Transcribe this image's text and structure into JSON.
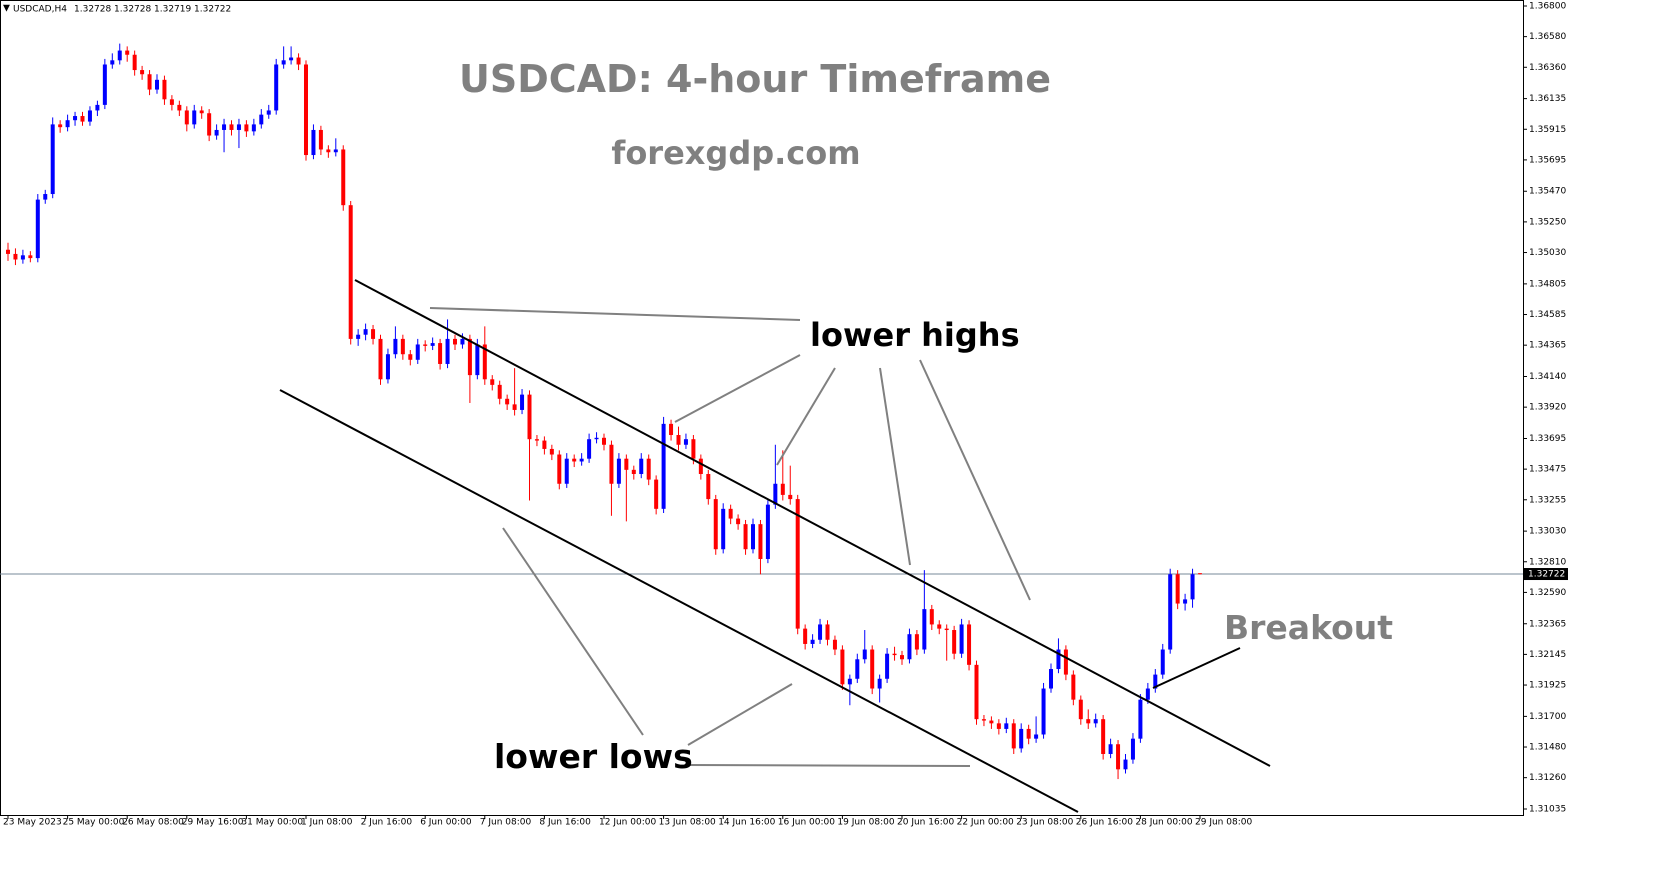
{
  "chart_data": {
    "type": "candlestick",
    "symbol": "USDCAD,H4",
    "title": "USDCAD: 4-hour Timeframe",
    "subtitle": "forexgdp.com",
    "annotations": [
      "lower highs",
      "lower lows",
      "Breakout"
    ],
    "up_color": "#0000ff",
    "down_color": "#ff0000",
    "price_line_color": "#778899",
    "ylim": [
      1.30992,
      1.36843
    ],
    "yticks": [
      {
        "value": 1.368,
        "label": "1.36800"
      },
      {
        "value": 1.3658,
        "label": "1.36580"
      },
      {
        "value": 1.3636,
        "label": "1.36360"
      },
      1.36135,
      1.35915,
      1.35695,
      {
        "value": 1.3547,
        "label": "1.35470"
      },
      {
        "value": 1.3525,
        "label": "1.35250"
      },
      {
        "value": 1.3503,
        "label": "1.35030"
      },
      1.34805,
      1.34585,
      1.34365,
      {
        "value": 1.3414,
        "label": "1.34140"
      },
      {
        "value": 1.3392,
        "label": "1.33920"
      },
      1.33695,
      1.33475,
      1.33255,
      {
        "value": 1.3303,
        "label": "1.33030"
      },
      {
        "value": 1.3281,
        "label": "1.32810"
      },
      {
        "value": 1.3259,
        "label": "1.32590"
      },
      1.32365,
      1.32145,
      1.31925,
      {
        "value": 1.317,
        "label": "1.31700"
      },
      {
        "value": 1.3148,
        "label": "1.31480"
      },
      {
        "value": 1.3126,
        "label": "1.31260"
      },
      1.31035
    ],
    "x": [
      "23 May 2023",
      null,
      null,
      null,
      null,
      null,
      null,
      null,
      "25 May 00:00",
      null,
      null,
      null,
      null,
      null,
      null,
      null,
      "26 May 08:00",
      null,
      null,
      null,
      null,
      null,
      null,
      null,
      "29 May 16:00",
      null,
      null,
      null,
      null,
      null,
      null,
      null,
      "31 May 00:00",
      null,
      null,
      null,
      null,
      null,
      null,
      null,
      "1 Jun 08:00",
      null,
      null,
      null,
      null,
      null,
      null,
      null,
      "2 Jun 16:00",
      null,
      null,
      null,
      null,
      null,
      null,
      null,
      "6 Jun 00:00",
      null,
      null,
      null,
      null,
      null,
      null,
      null,
      "7 Jun 08:00",
      null,
      null,
      null,
      null,
      null,
      null,
      null,
      "8 Jun 16:00",
      null,
      null,
      null,
      null,
      null,
      null,
      null,
      "12 Jun 00:00",
      null,
      null,
      null,
      null,
      null,
      null,
      null,
      "13 Jun 08:00",
      null,
      null,
      null,
      null,
      null,
      null,
      null,
      "14 Jun 16:00",
      null,
      null,
      null,
      null,
      null,
      null,
      null,
      "16 Jun 00:00",
      null,
      null,
      null,
      null,
      null,
      null,
      null,
      "19 Jun 08:00",
      null,
      null,
      null,
      null,
      null,
      null,
      null,
      "20 Jun 16:00",
      null,
      null,
      null,
      null,
      null,
      null,
      null,
      "22 Jun 00:00",
      null,
      null,
      null,
      null,
      null,
      null,
      null,
      "23 Jun 08:00",
      null,
      null,
      null,
      null,
      null,
      null,
      null,
      "26 Jun 16:00",
      null,
      null,
      null,
      null,
      null,
      null,
      null,
      "28 Jun 00:00",
      null,
      null,
      null,
      null,
      null,
      null,
      null,
      "29 Jun 08:00"
    ],
    "ohlc": [
      [
        1.3505,
        1.351,
        1.3497,
        1.3502
      ],
      [
        1.3502,
        1.3506,
        1.3494,
        1.3498
      ],
      [
        1.3498,
        1.3505,
        1.3495,
        1.3501
      ],
      [
        1.3501,
        1.3504,
        1.3496,
        1.3499
      ],
      [
        1.3499,
        1.3545,
        1.3496,
        1.3541
      ],
      [
        1.3541,
        1.3548,
        1.3538,
        1.3545
      ],
      [
        1.3545,
        1.36,
        1.3542,
        1.3595
      ],
      [
        1.3595,
        1.3598,
        1.3589,
        1.3593
      ],
      [
        1.3593,
        1.3602,
        1.359,
        1.3598
      ],
      [
        1.3598,
        1.3604,
        1.3594,
        1.3601
      ],
      [
        1.3601,
        1.3604,
        1.3594,
        1.3597
      ],
      [
        1.3597,
        1.3608,
        1.3594,
        1.3605
      ],
      [
        1.3605,
        1.3612,
        1.3601,
        1.3609
      ],
      [
        1.3609,
        1.3642,
        1.3606,
        1.3638
      ],
      [
        1.3638,
        1.3646,
        1.3635,
        1.3641
      ],
      [
        1.3641,
        1.3653,
        1.3638,
        1.3648
      ],
      [
        1.3648,
        1.3651,
        1.364,
        1.3645
      ],
      [
        1.3645,
        1.3648,
        1.363,
        1.3634
      ],
      [
        1.3634,
        1.3637,
        1.3627,
        1.3631
      ],
      [
        1.3631,
        1.3634,
        1.3616,
        1.362
      ],
      [
        1.362,
        1.3631,
        1.3617,
        1.3627
      ],
      [
        1.3627,
        1.363,
        1.3609,
        1.3613
      ],
      [
        1.3613,
        1.3616,
        1.3605,
        1.3609
      ],
      [
        1.3609,
        1.3612,
        1.3601,
        1.3605
      ],
      [
        1.3605,
        1.3608,
        1.359,
        1.3595
      ],
      [
        1.3595,
        1.3609,
        1.3592,
        1.3605
      ],
      [
        1.3605,
        1.3608,
        1.3599,
        1.3603
      ],
      [
        1.3603,
        1.3606,
        1.3583,
        1.3587
      ],
      [
        1.3587,
        1.3595,
        1.3584,
        1.3591
      ],
      [
        1.3591,
        1.3599,
        1.3575,
        1.3595
      ],
      [
        1.3595,
        1.3598,
        1.3587,
        1.3591
      ],
      [
        1.3591,
        1.3599,
        1.3578,
        1.3595
      ],
      [
        1.3595,
        1.3598,
        1.3586,
        1.359
      ],
      [
        1.359,
        1.3599,
        1.3587,
        1.3595
      ],
      [
        1.3595,
        1.3606,
        1.3592,
        1.3602
      ],
      [
        1.3602,
        1.3609,
        1.3599,
        1.3605
      ],
      [
        1.3605,
        1.3642,
        1.3602,
        1.3638
      ],
      [
        1.3638,
        1.3651,
        1.3635,
        1.3641
      ],
      [
        1.3641,
        1.3651,
        1.3638,
        1.3643
      ],
      [
        1.3643,
        1.3646,
        1.3634,
        1.3638
      ],
      [
        1.3638,
        1.3641,
        1.3569,
        1.3573
      ],
      [
        1.3573,
        1.3595,
        1.357,
        1.3591
      ],
      [
        1.3591,
        1.3594,
        1.3573,
        1.3577
      ],
      [
        1.3577,
        1.358,
        1.3571,
        1.3575
      ],
      [
        1.3575,
        1.3585,
        1.3572,
        1.3577
      ],
      [
        1.3577,
        1.358,
        1.3533,
        1.3537
      ],
      [
        1.3537,
        1.354,
        1.3437,
        1.3441
      ],
      [
        1.3441,
        1.3448,
        1.3436,
        1.3444
      ],
      [
        1.3444,
        1.3452,
        1.344,
        1.3448
      ],
      [
        1.3448,
        1.3451,
        1.3437,
        1.3441
      ],
      [
        1.3441,
        1.3444,
        1.3408,
        1.3412
      ],
      [
        1.3412,
        1.3434,
        1.3409,
        1.343
      ],
      [
        1.343,
        1.345,
        1.3427,
        1.3441
      ],
      [
        1.3441,
        1.3444,
        1.3426,
        1.343
      ],
      [
        1.343,
        1.3433,
        1.3422,
        1.3426
      ],
      [
        1.3426,
        1.3441,
        1.3423,
        1.3437
      ],
      [
        1.3437,
        1.344,
        1.3432,
        1.3436
      ],
      [
        1.3436,
        1.3442,
        1.3433,
        1.3438
      ],
      [
        1.3438,
        1.3441,
        1.3419,
        1.3423
      ],
      [
        1.3423,
        1.3455,
        1.342,
        1.3441
      ],
      [
        1.3441,
        1.3444,
        1.3433,
        1.3437
      ],
      [
        1.3437,
        1.3445,
        1.3434,
        1.3441
      ],
      [
        1.3441,
        1.3444,
        1.3395,
        1.3415
      ],
      [
        1.3415,
        1.3441,
        1.3412,
        1.3437
      ],
      [
        1.3437,
        1.345,
        1.3408,
        1.3412
      ],
      [
        1.3412,
        1.3415,
        1.3404,
        1.3408
      ],
      [
        1.3408,
        1.3411,
        1.3394,
        1.3398
      ],
      [
        1.3398,
        1.3401,
        1.339,
        1.3394
      ],
      [
        1.3394,
        1.342,
        1.3386,
        1.339
      ],
      [
        1.339,
        1.3405,
        1.3387,
        1.3401
      ],
      [
        1.3401,
        1.3404,
        1.3325,
        1.3369
      ],
      [
        1.3369,
        1.3372,
        1.3364,
        1.3368
      ],
      [
        1.3368,
        1.3371,
        1.3358,
        1.3362
      ],
      [
        1.3362,
        1.3365,
        1.3354,
        1.3358
      ],
      [
        1.3358,
        1.3361,
        1.3333,
        1.3337
      ],
      [
        1.3337,
        1.3359,
        1.3334,
        1.3355
      ],
      [
        1.3355,
        1.3358,
        1.3349,
        1.3353
      ],
      [
        1.3353,
        1.3359,
        1.335,
        1.3355
      ],
      [
        1.3355,
        1.3373,
        1.3352,
        1.3369
      ],
      [
        1.3369,
        1.3374,
        1.3366,
        1.337
      ],
      [
        1.337,
        1.3373,
        1.3361,
        1.3365
      ],
      [
        1.3365,
        1.3368,
        1.3314,
        1.3337
      ],
      [
        1.3337,
        1.3359,
        1.3334,
        1.3355
      ],
      [
        1.3355,
        1.3358,
        1.331,
        1.3347
      ],
      [
        1.3347,
        1.335,
        1.334,
        1.3344
      ],
      [
        1.3344,
        1.3359,
        1.3341,
        1.3355
      ],
      [
        1.3355,
        1.3358,
        1.3336,
        1.334
      ],
      [
        1.334,
        1.3343,
        1.3315,
        1.3319
      ],
      [
        1.3319,
        1.3385,
        1.3316,
        1.338
      ],
      [
        1.338,
        1.3383,
        1.3368,
        1.3372
      ],
      [
        1.3372,
        1.3378,
        1.3361,
        1.3365
      ],
      [
        1.3365,
        1.3373,
        1.3362,
        1.3369
      ],
      [
        1.3369,
        1.3372,
        1.3351,
        1.3355
      ],
      [
        1.3355,
        1.3358,
        1.334,
        1.3344
      ],
      [
        1.3344,
        1.3347,
        1.3322,
        1.3326
      ],
      [
        1.3326,
        1.3329,
        1.3286,
        1.329
      ],
      [
        1.329,
        1.3323,
        1.3287,
        1.3319
      ],
      [
        1.3319,
        1.3322,
        1.3308,
        1.3312
      ],
      [
        1.3312,
        1.3315,
        1.3304,
        1.3308
      ],
      [
        1.3308,
        1.3311,
        1.3286,
        1.329
      ],
      [
        1.329,
        1.3312,
        1.3287,
        1.3308
      ],
      [
        1.3308,
        1.3311,
        1.3272,
        1.3283
      ],
      [
        1.3283,
        1.3326,
        1.328,
        1.3322
      ],
      [
        1.3322,
        1.3365,
        1.3319,
        1.3337
      ],
      [
        1.3337,
        1.3361,
        1.3325,
        1.3329
      ],
      [
        1.3329,
        1.335,
        1.3322,
        1.3326
      ],
      [
        1.3326,
        1.3329,
        1.3229,
        1.3233
      ],
      [
        1.3233,
        1.3236,
        1.3218,
        1.3222
      ],
      [
        1.3222,
        1.3229,
        1.3219,
        1.3225
      ],
      [
        1.3225,
        1.324,
        1.3222,
        1.3236
      ],
      [
        1.3236,
        1.3239,
        1.3221,
        1.3225
      ],
      [
        1.3225,
        1.3228,
        1.3214,
        1.3218
      ],
      [
        1.3218,
        1.3221,
        1.3189,
        1.3193
      ],
      [
        1.3193,
        1.32,
        1.3178,
        1.3197
      ],
      [
        1.3197,
        1.3215,
        1.3194,
        1.3211
      ],
      [
        1.3211,
        1.3232,
        1.3208,
        1.3218
      ],
      [
        1.3218,
        1.3221,
        1.3186,
        1.319
      ],
      [
        1.319,
        1.32,
        1.318,
        1.3197
      ],
      [
        1.3197,
        1.3219,
        1.3194,
        1.3215
      ],
      [
        1.3215,
        1.322,
        1.321,
        1.3214
      ],
      [
        1.3214,
        1.3217,
        1.3207,
        1.3211
      ],
      [
        1.3211,
        1.3233,
        1.3208,
        1.3229
      ],
      [
        1.3229,
        1.3232,
        1.3214,
        1.3218
      ],
      [
        1.3218,
        1.3275,
        1.3215,
        1.3247
      ],
      [
        1.3247,
        1.325,
        1.3232,
        1.3236
      ],
      [
        1.3236,
        1.3239,
        1.3229,
        1.3233
      ],
      [
        1.3233,
        1.3236,
        1.321,
        1.3232
      ],
      [
        1.3232,
        1.3235,
        1.3211,
        1.3215
      ],
      [
        1.3215,
        1.324,
        1.3212,
        1.3236
      ],
      [
        1.3236,
        1.3239,
        1.3203,
        1.3207
      ],
      [
        1.3207,
        1.321,
        1.3164,
        1.3168
      ],
      [
        1.3168,
        1.3171,
        1.3163,
        1.3167
      ],
      [
        1.3167,
        1.317,
        1.3161,
        1.3165
      ],
      [
        1.3165,
        1.3168,
        1.3157,
        1.3161
      ],
      [
        1.3161,
        1.3169,
        1.3158,
        1.3165
      ],
      [
        1.3165,
        1.3168,
        1.3143,
        1.3147
      ],
      [
        1.3147,
        1.3165,
        1.3144,
        1.3161
      ],
      [
        1.3161,
        1.3164,
        1.315,
        1.3154
      ],
      [
        1.3154,
        1.317,
        1.3151,
        1.3157
      ],
      [
        1.3157,
        1.3194,
        1.3154,
        1.319
      ],
      [
        1.319,
        1.3208,
        1.3187,
        1.3204
      ],
      [
        1.3204,
        1.3226,
        1.3201,
        1.3218
      ],
      [
        1.3218,
        1.3221,
        1.3196,
        1.32
      ],
      [
        1.32,
        1.3203,
        1.3178,
        1.3182
      ],
      [
        1.3182,
        1.3185,
        1.3164,
        1.3168
      ],
      [
        1.3168,
        1.3175,
        1.3161,
        1.3165
      ],
      [
        1.3165,
        1.3172,
        1.3162,
        1.3168
      ],
      [
        1.3168,
        1.3171,
        1.3139,
        1.3143
      ],
      [
        1.3143,
        1.3154,
        1.314,
        1.315
      ],
      [
        1.315,
        1.3153,
        1.3125,
        1.3132
      ],
      [
        1.3132,
        1.3143,
        1.3129,
        1.3139
      ],
      [
        1.3139,
        1.3158,
        1.3136,
        1.3154
      ],
      [
        1.3154,
        1.3186,
        1.3151,
        1.3182
      ],
      [
        1.3182,
        1.3194,
        1.3179,
        1.319
      ],
      [
        1.319,
        1.3204,
        1.3187,
        1.32
      ],
      [
        1.32,
        1.3222,
        1.3197,
        1.3218
      ],
      [
        1.3218,
        1.3276,
        1.3215,
        1.3272
      ],
      [
        1.3272,
        1.3275,
        1.3247,
        1.3251
      ],
      [
        1.3251,
        1.3258,
        1.3246,
        1.3254
      ],
      [
        1.3254,
        1.3276,
        1.3248,
        1.3272
      ],
      [
        1.32728,
        1.32728,
        1.32719,
        1.32722
      ]
    ]
  }
}
